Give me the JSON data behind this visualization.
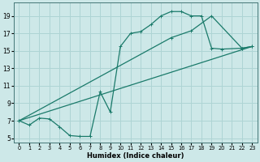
{
  "xlabel": "Humidex (Indice chaleur)",
  "bg_color": "#cde8e8",
  "grid_color": "#aed4d4",
  "line_color": "#1a7a6a",
  "xlim": [
    -0.5,
    23.5
  ],
  "ylim": [
    4.5,
    20.5
  ],
  "xticks": [
    0,
    1,
    2,
    3,
    4,
    5,
    6,
    7,
    8,
    9,
    10,
    11,
    12,
    13,
    14,
    15,
    16,
    17,
    18,
    19,
    20,
    21,
    22,
    23
  ],
  "yticks": [
    5,
    7,
    9,
    11,
    13,
    15,
    17,
    19
  ],
  "zigzag_x": [
    0,
    1,
    2,
    3,
    4,
    5,
    6,
    7,
    8,
    9,
    10,
    11,
    12,
    13,
    14,
    15,
    16,
    17,
    18,
    19,
    20,
    22,
    23
  ],
  "zigzag_y": [
    7.0,
    6.5,
    7.3,
    7.2,
    6.3,
    5.3,
    5.2,
    5.2,
    10.3,
    8.0,
    15.5,
    17.0,
    17.2,
    18.0,
    19.0,
    19.5,
    19.5,
    19.0,
    19.0,
    15.3,
    15.2,
    15.3,
    15.5
  ],
  "line2_x": [
    0,
    15,
    17,
    19,
    22,
    23
  ],
  "line2_y": [
    7.0,
    16.5,
    17.3,
    19.0,
    15.3,
    15.5
  ],
  "line3_x": [
    0,
    23
  ],
  "line3_y": [
    7.0,
    15.5
  ]
}
